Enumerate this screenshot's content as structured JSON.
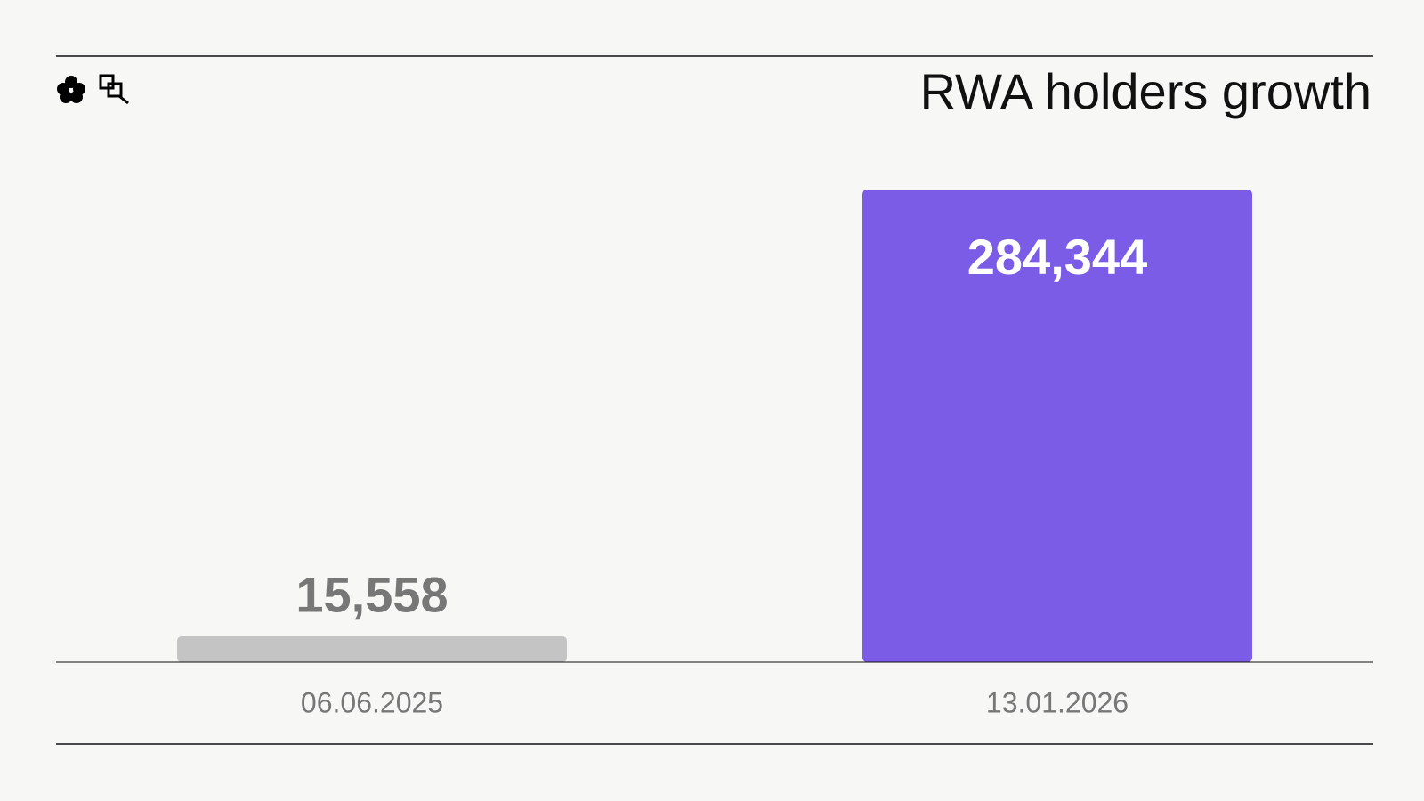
{
  "chart_data": {
    "type": "bar",
    "title": "RWA holders growth",
    "categories": [
      "06.06.2025",
      "13.01.2026"
    ],
    "values": [
      15558,
      284344
    ],
    "value_labels": [
      "15,558",
      "284,344"
    ],
    "colors": [
      "#c4c4c4",
      "#7b5ce6"
    ]
  }
}
